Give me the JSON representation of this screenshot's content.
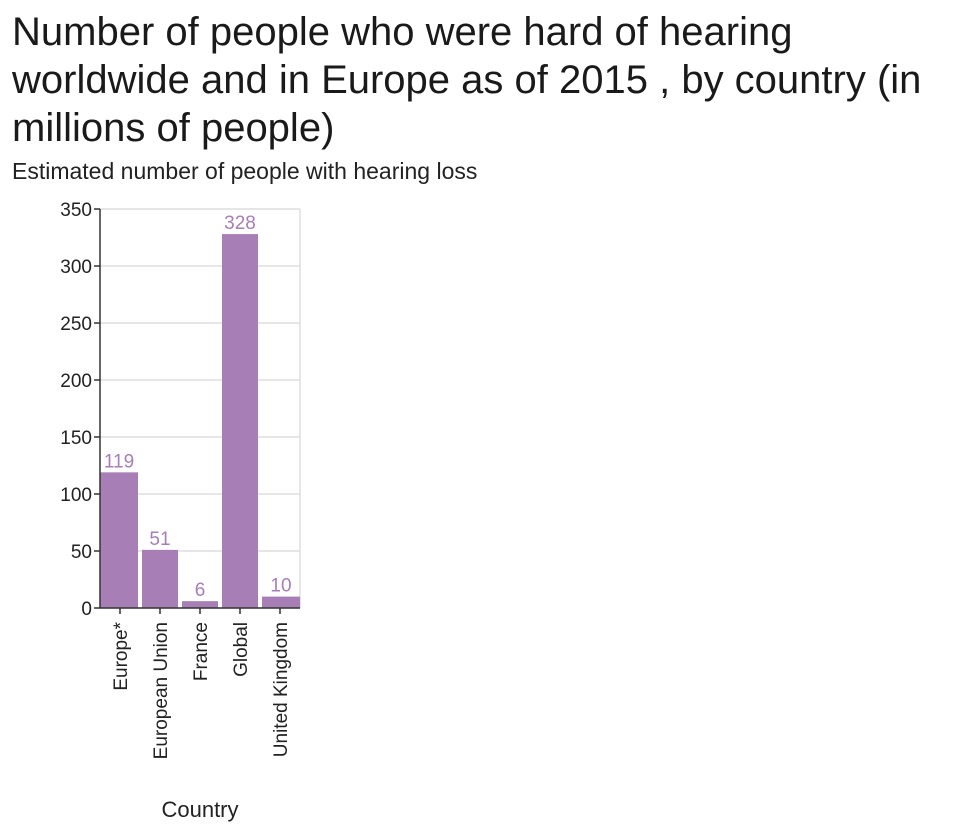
{
  "chart_data": {
    "type": "bar",
    "title": "Number of people who were hard of hearing worldwide and in Europe as of 2015 , by country (in millions of people)",
    "subtitle": "Estimated number of people with hearing loss",
    "xlabel": "Country",
    "ylabel": "",
    "categories": [
      "Europe*",
      "European Union",
      "France",
      "Global",
      "United Kingdom"
    ],
    "values": [
      119,
      51,
      6,
      328,
      10
    ],
    "data_labels": [
      "119",
      "51",
      "6",
      "328",
      "10"
    ],
    "ylim": [
      0,
      350
    ],
    "yticks": [
      0,
      50,
      100,
      150,
      200,
      250,
      300,
      350
    ],
    "ytick_labels": [
      "0",
      "50",
      "100",
      "150",
      "200",
      "250",
      "300",
      "350"
    ],
    "grid": true,
    "legend": "none",
    "colors": {
      "bar": "#a77fb6",
      "data_label": "#a77fb6",
      "grid": "#dddddd",
      "axis": "#333333"
    }
  }
}
